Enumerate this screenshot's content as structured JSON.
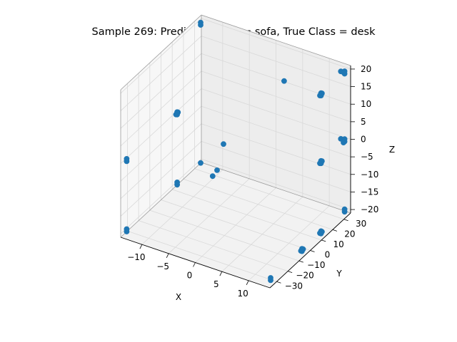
{
  "chart_data": {
    "type": "scatter",
    "projection": "3d",
    "title": "Sample 269: Predicted Class = sofa, True Class = desk",
    "xlabel": "X",
    "ylabel": "Y",
    "zlabel": "Z",
    "xlim": [
      -14,
      14
    ],
    "ylim": [
      -36,
      36
    ],
    "zlim": [
      -21,
      21
    ],
    "xticks": [
      -10,
      -5,
      0,
      5,
      10
    ],
    "yticks": [
      -30,
      -20,
      -10,
      0,
      10,
      20,
      30
    ],
    "zticks": [
      -20,
      -15,
      -10,
      -5,
      0,
      5,
      10,
      15,
      20
    ],
    "grid": true,
    "marker_color": "#1f77b4",
    "pane_colors": {
      "floor": "#f2f2f2",
      "left_wall": "#f7f7f7",
      "back_wall": "#ededed",
      "grid": "#d9d9d9",
      "edge": "#9a9a9a"
    },
    "points": [
      {
        "x": -13.5,
        "y": -33,
        "z": -20
      },
      {
        "x": -13.5,
        "y": -33,
        "z": -19.3
      },
      {
        "x": 13.5,
        "y": -33,
        "z": -20
      },
      {
        "x": 13.5,
        "y": -33,
        "z": -19.3
      },
      {
        "x": -13.5,
        "y": 33,
        "z": -20
      },
      {
        "x": 13.5,
        "y": 33,
        "z": -20
      },
      {
        "x": 13.5,
        "y": 33,
        "z": -19.3
      },
      {
        "x": -13.5,
        "y": -33,
        "z": 0
      },
      {
        "x": -13.5,
        "y": -33,
        "z": 0.7
      },
      {
        "x": -13.5,
        "y": 33,
        "z": 20
      },
      {
        "x": -13.5,
        "y": 33,
        "z": 19.3
      },
      {
        "x": 13.5,
        "y": 33,
        "z": 19.3
      },
      {
        "x": 13.5,
        "y": 33,
        "z": 20
      },
      {
        "x": 12.8,
        "y": 33,
        "z": 19.6
      },
      {
        "x": 13.5,
        "y": 32,
        "z": 20
      },
      {
        "x": 13.5,
        "y": 33,
        "z": 0
      },
      {
        "x": 13.5,
        "y": 33,
        "z": 0.7
      },
      {
        "x": 12.8,
        "y": 33,
        "z": 0.4
      },
      {
        "x": 13.5,
        "y": 32,
        "z": 0
      },
      {
        "x": 13.5,
        "y": 12,
        "z": 20
      },
      {
        "x": 13.5,
        "y": 12,
        "z": 19.3
      },
      {
        "x": 13.5,
        "y": 11,
        "z": 19.6
      },
      {
        "x": 13.5,
        "y": 12.8,
        "z": 19.7
      },
      {
        "x": 13.5,
        "y": 12,
        "z": 0
      },
      {
        "x": 13.5,
        "y": 12,
        "z": 0.7
      },
      {
        "x": 13.5,
        "y": 11,
        "z": 0.3
      },
      {
        "x": 13.5,
        "y": 12.8,
        "z": 0.4
      },
      {
        "x": 13.5,
        "y": -5,
        "z": -20
      },
      {
        "x": 13.5,
        "y": -5,
        "z": -19.3
      },
      {
        "x": 13.5,
        "y": -6,
        "z": -19.6
      },
      {
        "x": 13.5,
        "y": -4,
        "z": -19.7
      },
      {
        "x": -13.5,
        "y": 12,
        "z": 0
      },
      {
        "x": -13.5,
        "y": 12,
        "z": 0.7
      },
      {
        "x": -13.5,
        "y": 11,
        "z": 0.3
      },
      {
        "x": -13.5,
        "y": 12.8,
        "z": 0.4
      },
      {
        "x": -13.5,
        "y": 12,
        "z": -20
      },
      {
        "x": -13.5,
        "y": 12,
        "z": -19.3
      },
      {
        "x": -6,
        "y": 12,
        "z": -12
      },
      {
        "x": -6,
        "y": 8,
        "z": -12.5
      },
      {
        "x": -9,
        "y": 32,
        "z": -12
      },
      {
        "x": 3,
        "y": 29,
        "z": 13
      },
      {
        "x": 13.5,
        "y": 12,
        "z": -20
      },
      {
        "x": 13.5,
        "y": 12,
        "z": -19.3
      },
      {
        "x": 13.5,
        "y": 11,
        "z": -19.6
      },
      {
        "x": 13.5,
        "y": 12.8,
        "z": -19.7
      }
    ]
  }
}
